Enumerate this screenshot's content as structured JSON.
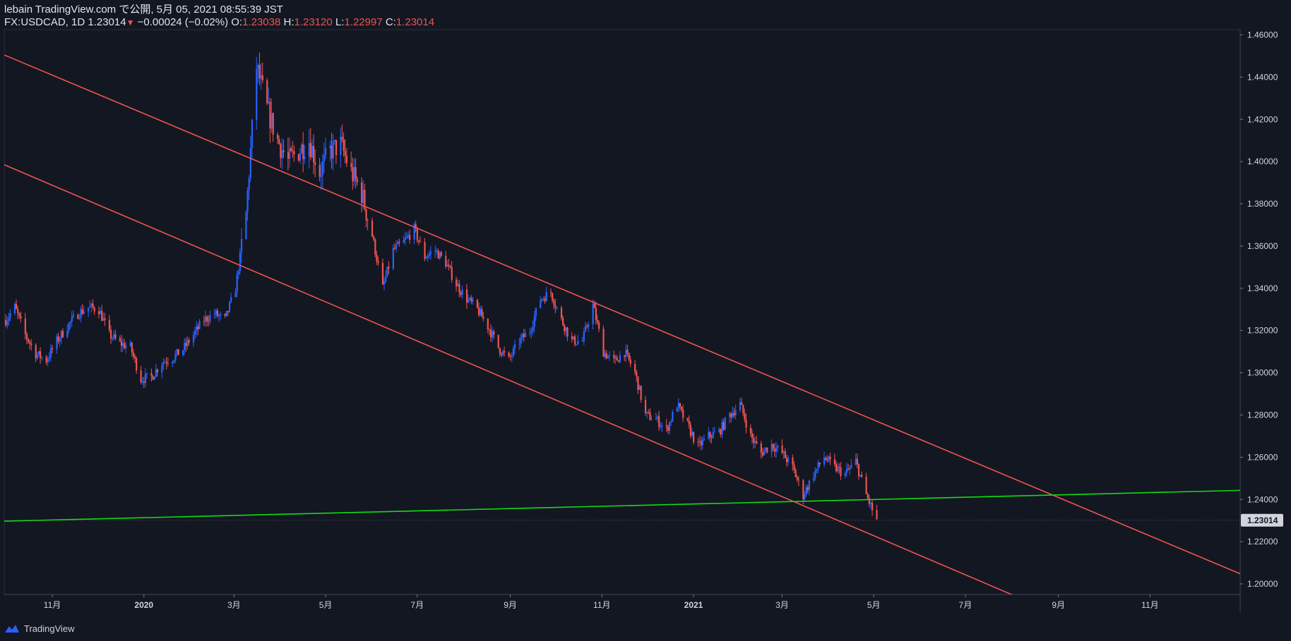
{
  "header": {
    "publish_line": "lebain TradingView.com で公開, 5月 05, 2021 08:55:39 JST",
    "symbol": "FX:USDCAD, 1D",
    "last": "1.23014",
    "change": "−0.00024 (−0.02%)",
    "o_label": "O:",
    "o_value": "1.23038",
    "h_label": "H:",
    "h_value": "1.23120",
    "l_label": "L:",
    "l_value": "1.22997",
    "c_label": "C:",
    "c_value": "1.23014"
  },
  "footer": {
    "brand": "TradingView",
    "logo_icon": "tradingview-logo-icon"
  },
  "colors": {
    "background": "#131722",
    "up": "#2962ff",
    "down": "#ef5350",
    "channel": "#ef5350",
    "support": "#11dd11",
    "axis_text": "#d1d4dc",
    "price_tag_bg": "#d1d4dc",
    "price_tag_text": "#131722"
  },
  "chart_data": {
    "type": "candlestick",
    "symbol": "FX:USDCAD",
    "interval": "1D",
    "grid": false,
    "ylim": [
      1.195,
      1.4625
    ],
    "xlim": [
      "2019-09-30",
      "2021-12-31"
    ],
    "y_ticks": [
      "1.20000",
      "1.22000",
      "1.24000",
      "1.26000",
      "1.28000",
      "1.30000",
      "1.32000",
      "1.34000",
      "1.36000",
      "1.38000",
      "1.40000",
      "1.42000",
      "1.44000",
      "1.46000"
    ],
    "x_ticks": [
      {
        "date": "2019-11-01",
        "label": "11月"
      },
      {
        "date": "2020-01-01",
        "label": "2020"
      },
      {
        "date": "2020-03-01",
        "label": "3月"
      },
      {
        "date": "2020-05-01",
        "label": "5月"
      },
      {
        "date": "2020-07-01",
        "label": "7月"
      },
      {
        "date": "2020-09-01",
        "label": "9月"
      },
      {
        "date": "2020-11-01",
        "label": "11月"
      },
      {
        "date": "2021-01-01",
        "label": "2021"
      },
      {
        "date": "2021-03-01",
        "label": "3月"
      },
      {
        "date": "2021-05-01",
        "label": "5月"
      },
      {
        "date": "2021-07-01",
        "label": "7月"
      },
      {
        "date": "2021-09-01",
        "label": "9月"
      },
      {
        "date": "2021-11-01",
        "label": "11月"
      }
    ],
    "last_price": "1.23014",
    "price_path": [
      [
        "2019-10-01",
        1.325
      ],
      [
        "2019-10-07",
        1.331
      ],
      [
        "2019-10-14",
        1.318
      ],
      [
        "2019-10-21",
        1.309
      ],
      [
        "2019-10-28",
        1.306
      ],
      [
        "2019-11-04",
        1.315
      ],
      [
        "2019-11-11",
        1.322
      ],
      [
        "2019-11-18",
        1.328
      ],
      [
        "2019-11-25",
        1.331
      ],
      [
        "2019-12-02",
        1.33
      ],
      [
        "2019-12-09",
        1.318
      ],
      [
        "2019-12-16",
        1.314
      ],
      [
        "2019-12-23",
        1.312
      ],
      [
        "2019-12-30",
        1.297
      ],
      [
        "2020-01-06",
        1.298
      ],
      [
        "2020-01-13",
        1.305
      ],
      [
        "2020-01-20",
        1.307
      ],
      [
        "2020-01-27",
        1.311
      ],
      [
        "2020-02-03",
        1.318
      ],
      [
        "2020-02-10",
        1.325
      ],
      [
        "2020-02-17",
        1.328
      ],
      [
        "2020-02-24",
        1.325
      ],
      [
        "2020-03-02",
        1.34
      ],
      [
        "2020-03-09",
        1.375
      ],
      [
        "2020-03-16",
        1.445
      ],
      [
        "2020-03-23",
        1.425
      ],
      [
        "2020-03-30",
        1.41
      ],
      [
        "2020-04-06",
        1.4
      ],
      [
        "2020-04-13",
        1.405
      ],
      [
        "2020-04-20",
        1.41
      ],
      [
        "2020-04-27",
        1.395
      ],
      [
        "2020-05-04",
        1.405
      ],
      [
        "2020-05-11",
        1.408
      ],
      [
        "2020-05-18",
        1.395
      ],
      [
        "2020-05-25",
        1.385
      ],
      [
        "2020-06-01",
        1.365
      ],
      [
        "2020-06-08",
        1.34
      ],
      [
        "2020-06-15",
        1.358
      ],
      [
        "2020-06-22",
        1.362
      ],
      [
        "2020-06-29",
        1.368
      ],
      [
        "2020-07-06",
        1.355
      ],
      [
        "2020-07-13",
        1.358
      ],
      [
        "2020-07-20",
        1.352
      ],
      [
        "2020-07-27",
        1.342
      ],
      [
        "2020-08-03",
        1.335
      ],
      [
        "2020-08-10",
        1.33
      ],
      [
        "2020-08-17",
        1.322
      ],
      [
        "2020-08-24",
        1.312
      ],
      [
        "2020-08-31",
        1.306
      ],
      [
        "2020-09-07",
        1.315
      ],
      [
        "2020-09-14",
        1.32
      ],
      [
        "2020-09-21",
        1.335
      ],
      [
        "2020-09-28",
        1.338
      ],
      [
        "2020-10-05",
        1.325
      ],
      [
        "2020-10-12",
        1.315
      ],
      [
        "2020-10-19",
        1.315
      ],
      [
        "2020-10-26",
        1.332
      ],
      [
        "2020-11-02",
        1.31
      ],
      [
        "2020-11-09",
        1.305
      ],
      [
        "2020-11-16",
        1.31
      ],
      [
        "2020-11-23",
        1.3
      ],
      [
        "2020-11-30",
        1.28
      ],
      [
        "2020-12-07",
        1.278
      ],
      [
        "2020-12-14",
        1.273
      ],
      [
        "2020-12-21",
        1.285
      ],
      [
        "2020-12-28",
        1.275
      ],
      [
        "2021-01-04",
        1.265
      ],
      [
        "2021-01-11",
        1.27
      ],
      [
        "2021-01-18",
        1.272
      ],
      [
        "2021-01-25",
        1.28
      ],
      [
        "2021-02-01",
        1.285
      ],
      [
        "2021-02-08",
        1.27
      ],
      [
        "2021-02-15",
        1.262
      ],
      [
        "2021-02-22",
        1.266
      ],
      [
        "2021-03-01",
        1.262
      ],
      [
        "2021-03-08",
        1.255
      ],
      [
        "2021-03-15",
        1.242
      ],
      [
        "2021-03-22",
        1.252
      ],
      [
        "2021-03-29",
        1.26
      ],
      [
        "2021-04-05",
        1.255
      ],
      [
        "2021-04-12",
        1.252
      ],
      [
        "2021-04-19",
        1.258
      ],
      [
        "2021-04-26",
        1.242
      ],
      [
        "2021-05-03",
        1.23
      ]
    ],
    "trendlines": [
      {
        "name": "",
        "role": "channel-upper",
        "color": "#ef5350",
        "p1": [
          "2019-09-30",
          1.4505
        ],
        "p2": [
          "2021-12-31",
          1.2048
        ]
      },
      {
        "name": "",
        "role": "channel-lower",
        "color": "#ef5350",
        "p1": [
          "2019-09-30",
          1.3985
        ],
        "p2": [
          "2021-09-02",
          1.1852
        ]
      },
      {
        "name": "",
        "role": "support",
        "color": "#11dd11",
        "p1": [
          "2019-09-30",
          1.2297
        ],
        "p2": [
          "2021-12-31",
          1.2443
        ]
      }
    ]
  }
}
